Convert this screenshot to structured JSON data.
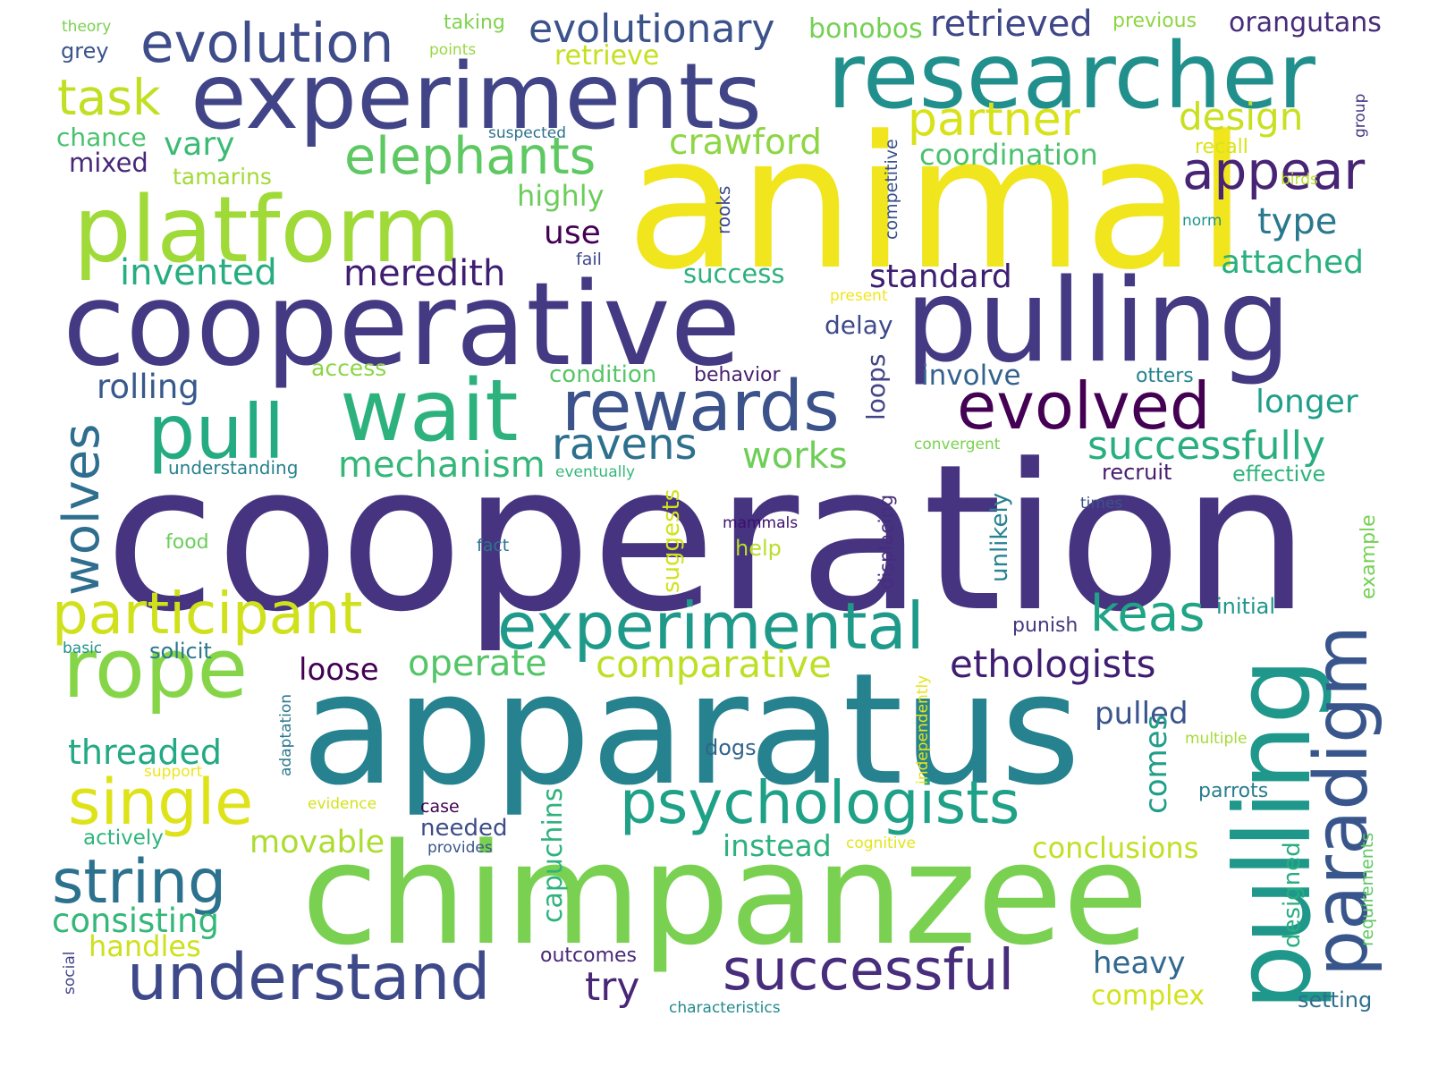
{
  "words": [
    {
      "text": "cooperation",
      "color": "#463480"
    },
    {
      "text": "animal",
      "color": "#f1e51d"
    },
    {
      "text": "apparatus",
      "color": "#26828e"
    },
    {
      "text": "chimpanzee",
      "color": "#7ad151"
    },
    {
      "text": "cooperative",
      "color": "#443a83"
    },
    {
      "text": "pulling",
      "color": "#443983"
    },
    {
      "text": "experiments",
      "color": "#414487"
    },
    {
      "text": "researcher",
      "color": "#21908d"
    },
    {
      "text": "pulling",
      "color": "#1f988b"
    },
    {
      "text": "platform",
      "color": "#a0da39"
    },
    {
      "text": "wait",
      "color": "#2db27d"
    },
    {
      "text": "rewards",
      "color": "#3b528b"
    },
    {
      "text": "paradigm",
      "color": "#39568c"
    },
    {
      "text": "pull",
      "color": "#25ab82"
    },
    {
      "text": "evolved",
      "color": "#440154"
    },
    {
      "text": "experimental",
      "color": "#1f9a8a"
    },
    {
      "text": "rope",
      "color": "#86d549"
    },
    {
      "text": "participant",
      "color": "#d0e11c"
    },
    {
      "text": "psychologists",
      "color": "#1fa188"
    },
    {
      "text": "string",
      "color": "#2c728e"
    },
    {
      "text": "single",
      "color": "#dde318"
    },
    {
      "text": "understand",
      "color": "#3e4989"
    },
    {
      "text": "successful",
      "color": "#472d7b"
    },
    {
      "text": "evolution",
      "color": "#3e4c8a"
    },
    {
      "text": "elephants",
      "color": "#5ec962"
    },
    {
      "text": "partner",
      "color": "#d8e219"
    },
    {
      "text": "appear",
      "color": "#482475"
    },
    {
      "text": "task",
      "color": "#c2df23"
    },
    {
      "text": "design",
      "color": "#c8e020"
    },
    {
      "text": "evolutionary",
      "color": "#3b528b"
    },
    {
      "text": "retrieved",
      "color": "#3f4788"
    },
    {
      "text": "wolves",
      "color": "#2e6e8e"
    },
    {
      "text": "ravens",
      "color": "#2d708e"
    },
    {
      "text": "mechanism",
      "color": "#35b779"
    },
    {
      "text": "successfully",
      "color": "#29af7f"
    },
    {
      "text": "keas",
      "color": "#20a486"
    },
    {
      "text": "ethologists",
      "color": "#3f1d71"
    },
    {
      "text": "operate",
      "color": "#54c568"
    },
    {
      "text": "comparative",
      "color": "#bddf26"
    },
    {
      "text": "invented",
      "color": "#27ad81"
    },
    {
      "text": "meredith",
      "color": "#3f1d71"
    },
    {
      "text": "standard",
      "color": "#3d1e70"
    },
    {
      "text": "crawford",
      "color": "#8ed645"
    },
    {
      "text": "attached",
      "color": "#2ab07f"
    },
    {
      "text": "type",
      "color": "#2a788e"
    },
    {
      "text": "works",
      "color": "#6ece58"
    },
    {
      "text": "rolling",
      "color": "#38598c"
    },
    {
      "text": "loose",
      "color": "#440154"
    },
    {
      "text": "threaded",
      "color": "#23a983"
    },
    {
      "text": "movable",
      "color": "#addc30"
    },
    {
      "text": "consisting",
      "color": "#35b779"
    },
    {
      "text": "handles",
      "color": "#cde11d"
    },
    {
      "text": "conclusions",
      "color": "#c0df25"
    },
    {
      "text": "instead",
      "color": "#2db27d"
    },
    {
      "text": "pulled",
      "color": "#3a548c"
    },
    {
      "text": "heavy",
      "color": "#31688e"
    },
    {
      "text": "complex",
      "color": "#d2e21b"
    },
    {
      "text": "try",
      "color": "#482777"
    },
    {
      "text": "comes",
      "color": "#1f9e89"
    },
    {
      "text": "capuchins",
      "color": "#2eb37c"
    },
    {
      "text": "designed",
      "color": "#26ad81"
    },
    {
      "text": "longer",
      "color": "#1f9e89"
    },
    {
      "text": "involve",
      "color": "#33628d"
    },
    {
      "text": "vary",
      "color": "#3bbb75"
    },
    {
      "text": "chance",
      "color": "#48c16e"
    },
    {
      "text": "mixed",
      "color": "#482878"
    },
    {
      "text": "highly",
      "color": "#6ccd5a"
    },
    {
      "text": "use",
      "color": "#440154"
    },
    {
      "text": "success",
      "color": "#2cb17e"
    },
    {
      "text": "coordination",
      "color": "#4ac16d"
    },
    {
      "text": "retrieve",
      "color": "#c5e021"
    },
    {
      "text": "bonobos",
      "color": "#75d054"
    },
    {
      "text": "orangutans",
      "color": "#472c7a"
    },
    {
      "text": "delay",
      "color": "#3e4a89"
    },
    {
      "text": "access",
      "color": "#8bd646"
    },
    {
      "text": "condition",
      "color": "#55c667"
    },
    {
      "text": "behavior",
      "color": "#481f70"
    },
    {
      "text": "otters",
      "color": "#25838e"
    },
    {
      "text": "recruit",
      "color": "#481d6f"
    },
    {
      "text": "effective",
      "color": "#2fb47c"
    },
    {
      "text": "punish",
      "color": "#453781"
    },
    {
      "text": "initial",
      "color": "#1f968b"
    },
    {
      "text": "parrots",
      "color": "#287d8e"
    },
    {
      "text": "needed",
      "color": "#3e4c8a"
    },
    {
      "text": "dogs",
      "color": "#33638d"
    },
    {
      "text": "food",
      "color": "#6ccd5a"
    },
    {
      "text": "help",
      "color": "#b8de29"
    },
    {
      "text": "solicit",
      "color": "#2a778e"
    },
    {
      "text": "actively",
      "color": "#2fb47c"
    },
    {
      "text": "outcomes",
      "color": "#482878"
    },
    {
      "text": "setting",
      "color": "#2e6f8e"
    },
    {
      "text": "taking",
      "color": "#7fd34e"
    },
    {
      "text": "previous",
      "color": "#8ed645"
    },
    {
      "text": "grey",
      "color": "#3a548c"
    },
    {
      "text": "theory",
      "color": "#7ad151"
    },
    {
      "text": "points",
      "color": "#97d83f"
    },
    {
      "text": "suspected",
      "color": "#2d708e"
    },
    {
      "text": "tamarins",
      "color": "#a2da37"
    },
    {
      "text": "recall",
      "color": "#dae319"
    },
    {
      "text": "birds",
      "color": "#bade28"
    },
    {
      "text": "norm",
      "color": "#1f958b"
    },
    {
      "text": "fail",
      "color": "#3e4989"
    },
    {
      "text": "present",
      "color": "#f1e51d"
    },
    {
      "text": "convergent",
      "color": "#7ad151"
    },
    {
      "text": "understanding",
      "color": "#27808e"
    },
    {
      "text": "eventually",
      "color": "#35b779"
    },
    {
      "text": "times",
      "color": "#3b528b"
    },
    {
      "text": "mammals",
      "color": "#3c0f70"
    },
    {
      "text": "fact",
      "color": "#2c728e"
    },
    {
      "text": "basic",
      "color": "#21918c"
    },
    {
      "text": "multiple",
      "color": "#a5db36"
    },
    {
      "text": "support",
      "color": "#efe51c"
    },
    {
      "text": "evidence",
      "color": "#d5e21a"
    },
    {
      "text": "case",
      "color": "#440154"
    },
    {
      "text": "provides",
      "color": "#39568c"
    },
    {
      "text": "cognitive",
      "color": "#e5e419"
    },
    {
      "text": "characteristics",
      "color": "#23898e"
    },
    {
      "text": "rooks",
      "color": "#3e4a89"
    },
    {
      "text": "competitive",
      "color": "#3b528b"
    },
    {
      "text": "suggests",
      "color": "#d2e21b"
    },
    {
      "text": "displacing",
      "color": "#472d7b"
    },
    {
      "text": "unlikely",
      "color": "#26828e"
    },
    {
      "text": "loops",
      "color": "#414487"
    },
    {
      "text": "adaptation",
      "color": "#2a788e"
    },
    {
      "text": "independently",
      "color": "#e7e419"
    },
    {
      "text": "example",
      "color": "#75d054"
    },
    {
      "text": "requirements",
      "color": "#5ec962"
    },
    {
      "text": "group",
      "color": "#443a83"
    },
    {
      "text": "social",
      "color": "#414487"
    }
  ]
}
